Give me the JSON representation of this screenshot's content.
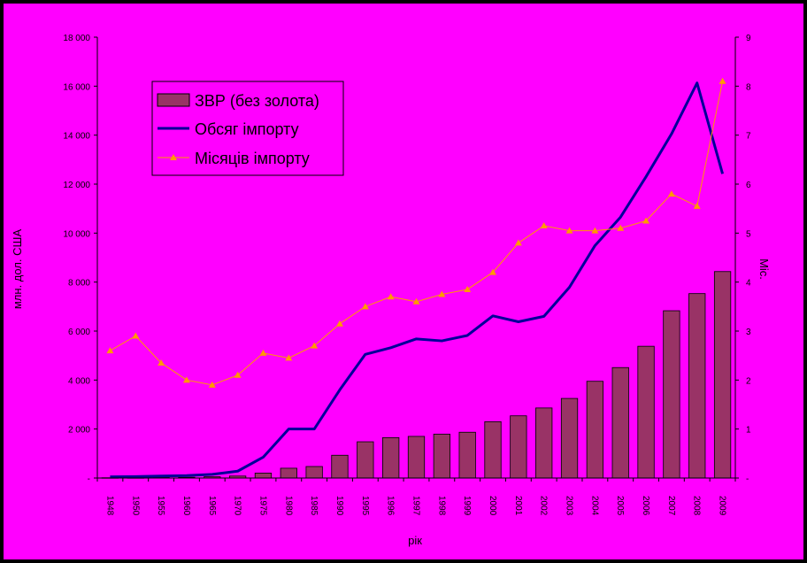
{
  "chart_data": {
    "type": "bar",
    "title": "",
    "xlabel": "рік",
    "ylabel": "млн. дол. США",
    "y2label": "Міс.",
    "categories": [
      "1948",
      "1950",
      "1955",
      "1960",
      "1965",
      "1970",
      "1975",
      "1980",
      "1985",
      "1990",
      "1995",
      "1996",
      "1997",
      "1998",
      "1999",
      "2000",
      "2001",
      "2002",
      "2003",
      "2004",
      "2005",
      "2006",
      "2007",
      "2008",
      "2009"
    ],
    "ylim": [
      0,
      18000
    ],
    "y_ticks": [
      "-",
      "2 000",
      "4 000",
      "6 000",
      "8 000",
      "10 000",
      "12 000",
      "14 000",
      "16 000",
      "18 000"
    ],
    "y2lim": [
      0,
      9
    ],
    "y2_ticks": [
      "-",
      "1",
      "2",
      "3",
      "4",
      "5",
      "6",
      "7",
      "8",
      "9"
    ],
    "legend_position": "top-left",
    "colors": {
      "background": "#ff00ff",
      "frame": "#000000",
      "bars": "#993366",
      "imports_line": "#000099",
      "months_line": "#ff9900"
    },
    "series": [
      {
        "name": "ЗВР (без золота)",
        "type": "bar",
        "axis": "left",
        "values": [
          10,
          10,
          20,
          30,
          50,
          80,
          200,
          400,
          470,
          930,
          1480,
          1650,
          1700,
          1790,
          1870,
          2300,
          2540,
          2860,
          3250,
          3950,
          4510,
          5380,
          6830,
          7530,
          8430
        ]
      },
      {
        "name": "Обсяг імпорту",
        "type": "line",
        "axis": "left",
        "values": [
          50,
          60,
          80,
          100,
          150,
          280,
          850,
          2000,
          2000,
          3600,
          5050,
          5320,
          5680,
          5600,
          5820,
          6620,
          6380,
          6600,
          7790,
          9490,
          10650,
          12300,
          14050,
          16130,
          12420
        ]
      },
      {
        "name": "Місяців імпорту",
        "type": "line",
        "axis": "right",
        "values": [
          2.6,
          2.9,
          2.35,
          2.0,
          1.9,
          2.1,
          2.55,
          2.45,
          2.7,
          3.15,
          3.5,
          3.7,
          3.6,
          3.75,
          3.85,
          4.2,
          4.8,
          5.15,
          5.05,
          5.05,
          5.1,
          5.25,
          5.8,
          5.55,
          8.1
        ]
      }
    ]
  }
}
